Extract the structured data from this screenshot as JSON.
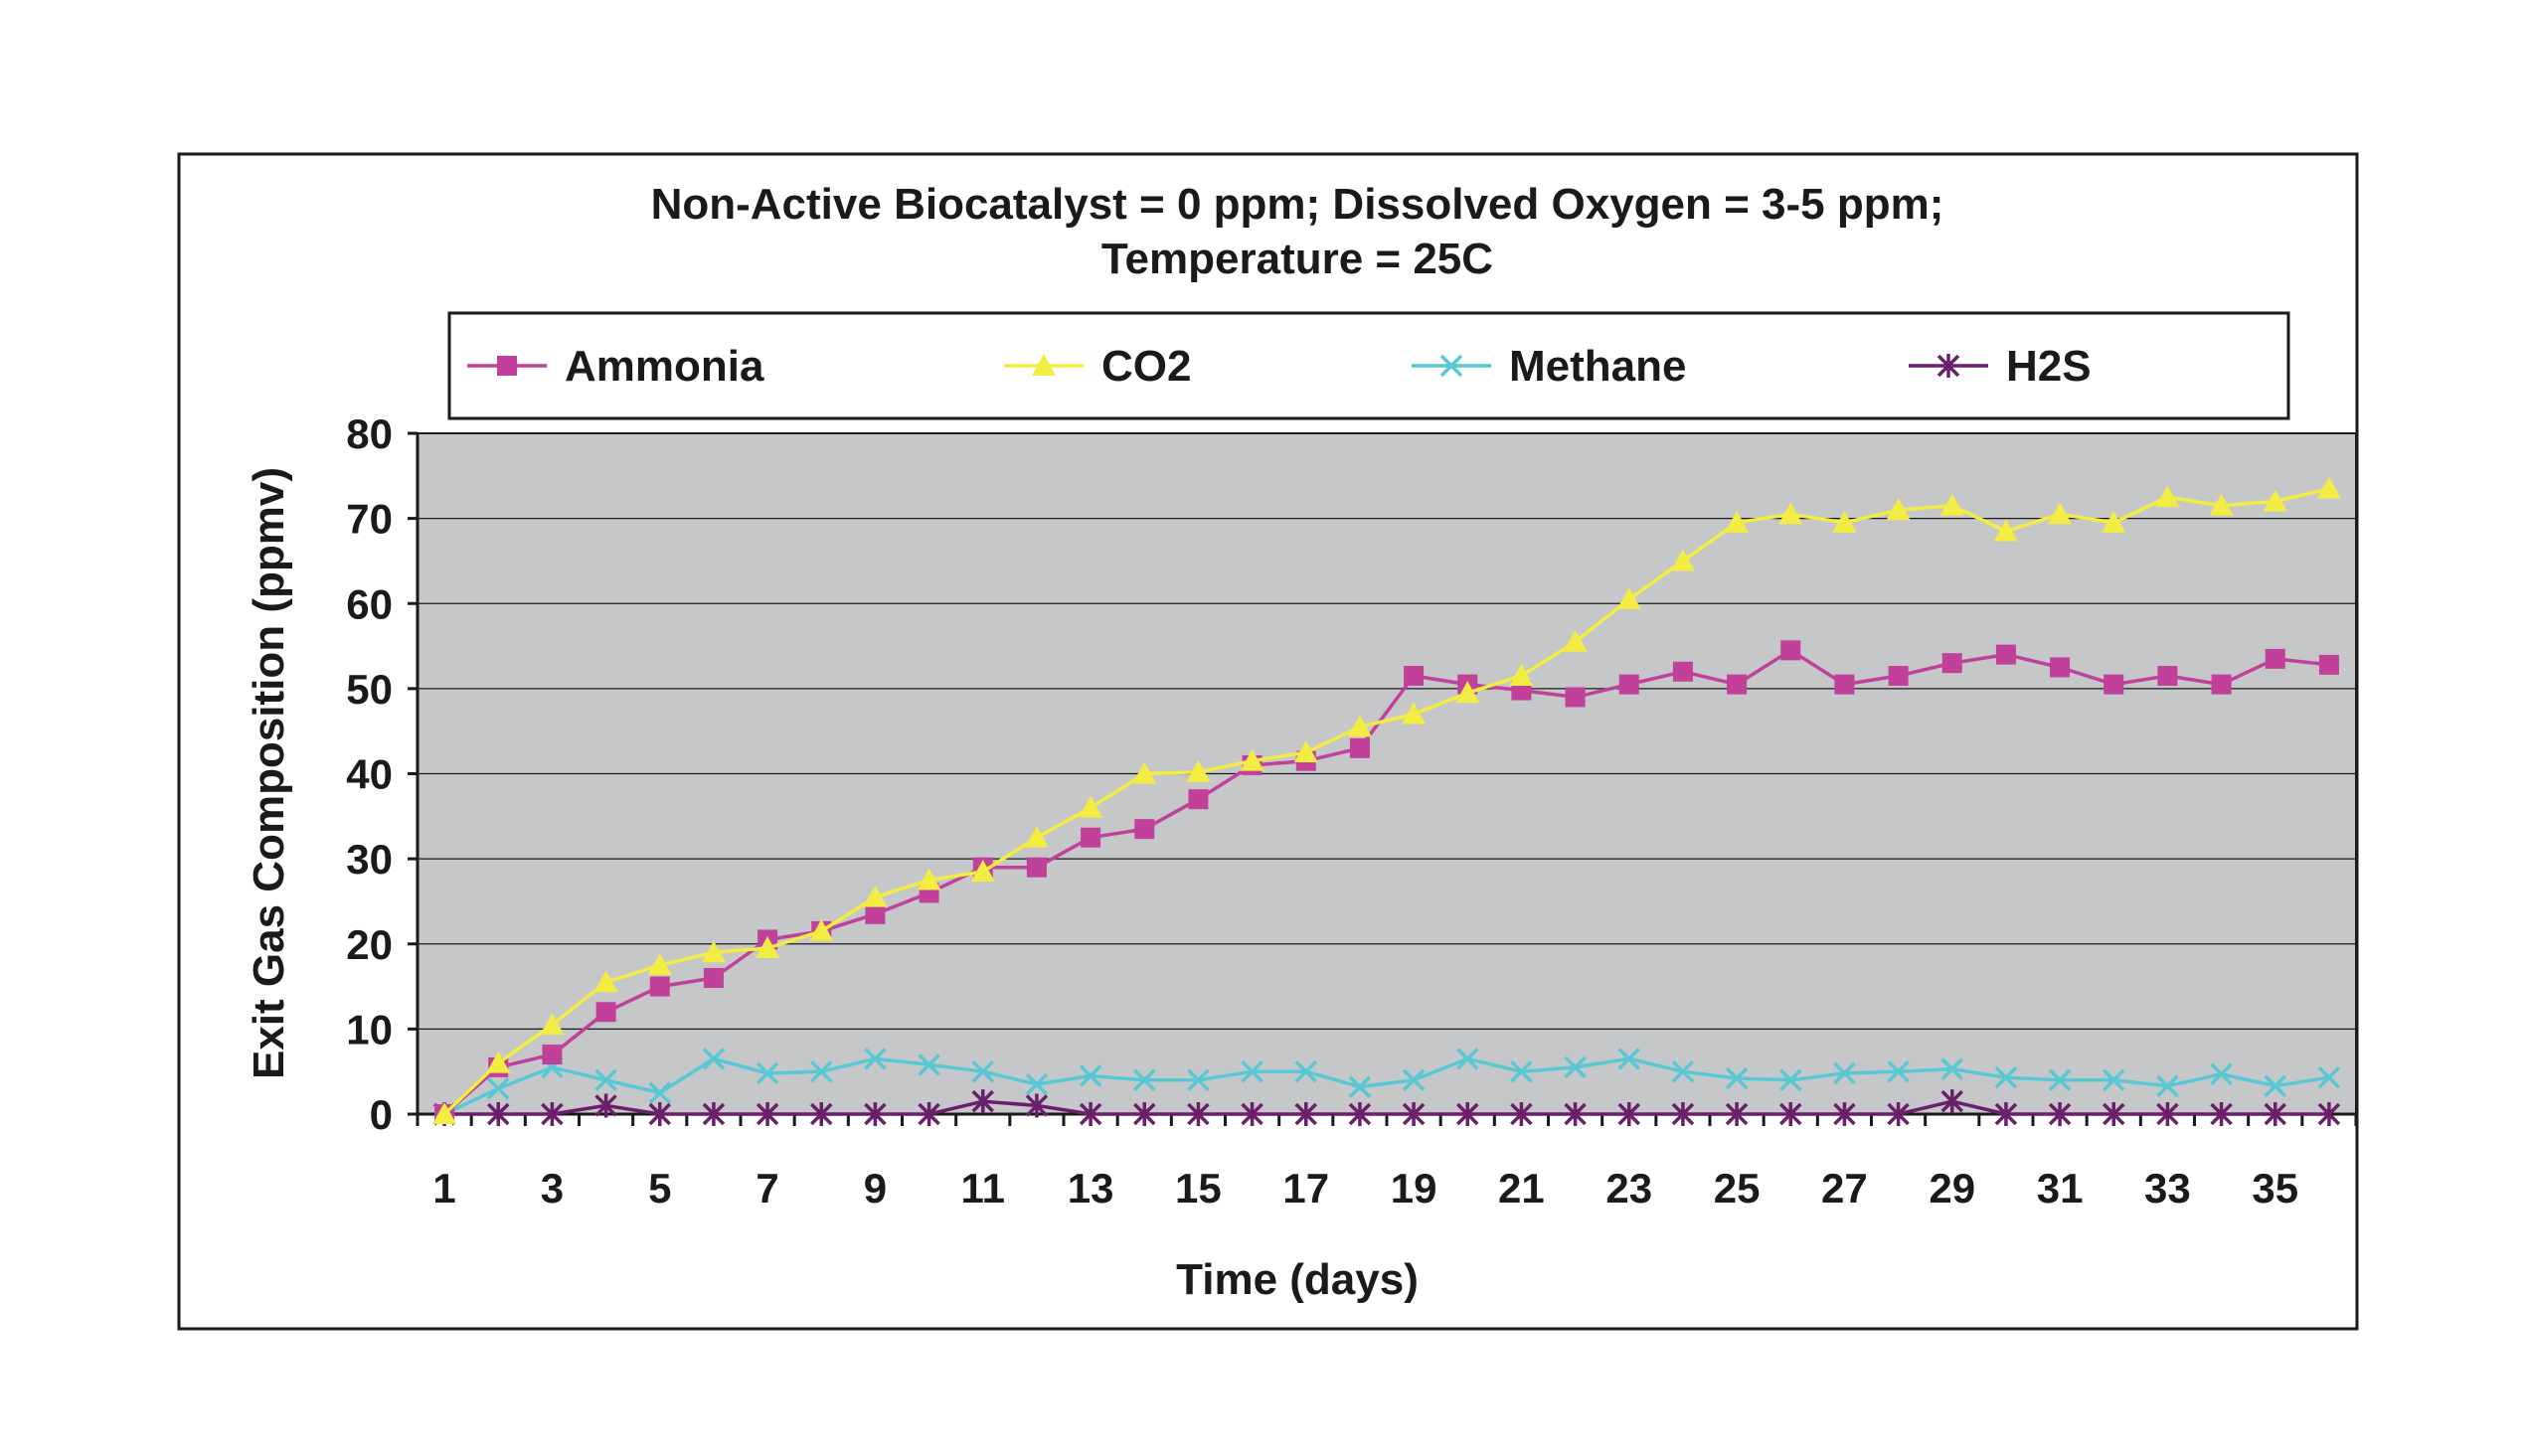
{
  "chart_data": {
    "type": "line",
    "title": "Non-Active Biocatalyst = 0 ppm; Dissolved Oxygen = 3-5 ppm;",
    "subtitle": "Temperature = 25C",
    "xlabel": "Time (days)",
    "ylabel": "Exit Gas Composition (ppmv)",
    "ylim": [
      0,
      80
    ],
    "yticks": [
      "0",
      "10",
      "20",
      "30",
      "40",
      "50",
      "60",
      "70",
      "80"
    ],
    "xticks": [
      "1",
      "3",
      "5",
      "7",
      "9",
      "11",
      "13",
      "15",
      "17",
      "19",
      "21",
      "23",
      "25",
      "27",
      "29",
      "31",
      "33",
      "35"
    ],
    "x": [
      1,
      2,
      3,
      4,
      5,
      6,
      7,
      8,
      9,
      10,
      11,
      12,
      13,
      14,
      15,
      16,
      17,
      18,
      19,
      20,
      21,
      22,
      23,
      24,
      25,
      26,
      27,
      28,
      29,
      30,
      31,
      32,
      33,
      34,
      35,
      36
    ],
    "grid": true,
    "legend_position": "top",
    "plot_background": "#c6c7c9",
    "series": [
      {
        "name": "Ammonia",
        "color": "#c0409a",
        "marker": "square",
        "values": [
          0,
          5.5,
          7,
          12,
          15,
          16,
          20.5,
          21.5,
          23.5,
          26,
          29,
          29,
          32.5,
          33.5,
          37,
          41,
          41.5,
          43,
          51.5,
          50.5,
          49.8,
          49,
          50.5,
          52,
          50.5,
          54.5,
          50.5,
          51.5,
          53,
          54,
          52.5,
          50.5,
          51.5,
          50.5,
          53.5,
          52.8
        ]
      },
      {
        "name": "CO2",
        "color": "#f2ec43",
        "marker": "triangle",
        "values": [
          0,
          6,
          10.5,
          15.5,
          17.5,
          19,
          19.5,
          21.5,
          25.5,
          27.5,
          28.5,
          32.5,
          36,
          40,
          40.2,
          41.5,
          42.5,
          45.5,
          47,
          49.5,
          51.5,
          55.5,
          60.5,
          65,
          69.5,
          70.5,
          69.5,
          71,
          71.5,
          68.5,
          70.5,
          69.5,
          72.5,
          71.5,
          72,
          73.5
        ]
      },
      {
        "name": "Methane",
        "color": "#57c8d4",
        "marker": "x",
        "values": [
          0,
          3,
          5.5,
          4,
          2.5,
          6.5,
          4.8,
          5,
          6.5,
          5.8,
          5,
          3.5,
          4.5,
          4,
          4,
          5,
          5,
          3.2,
          4,
          6.5,
          5,
          5.5,
          6.5,
          5,
          4.2,
          4,
          4.8,
          5,
          5.3,
          4.3,
          4,
          4,
          3.3,
          4.7,
          3.3,
          4.3
        ]
      },
      {
        "name": "H2S",
        "color": "#6a1f6b",
        "marker": "star",
        "values": [
          0,
          0,
          0,
          1,
          0,
          0,
          0,
          0,
          0,
          0,
          1.5,
          1,
          0,
          0,
          0,
          0,
          0,
          0,
          0,
          0,
          0,
          0,
          0,
          0,
          0,
          0,
          0,
          0,
          1.5,
          0,
          0,
          0,
          0,
          0,
          0,
          0
        ]
      }
    ]
  }
}
